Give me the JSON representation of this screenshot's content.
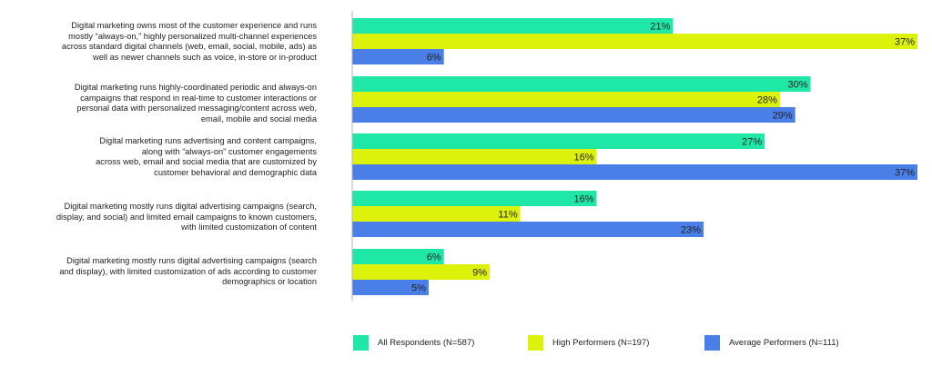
{
  "chart_data": {
    "type": "bar",
    "orientation": "horizontal",
    "categories": [
      "Digital marketing owns most of the customer experience and runs mostly “always-on,” highly personalized multi-channel experiences across standard digital channels (web, email, social, mobile, ads) as well as newer channels such as voice, in-store or in-product",
      "Digital marketing runs highly-coordinated periodic and always-on campaigns that respond in real-time to customer interactions or personal data with personalized messaging/content across web, email, mobile and social media",
      "Digital marketing runs advertising and content campaigns, along with “always-on” customer engagements across web, email and social media that are customized by customer behavioral and demographic data",
      "Digital marketing mostly runs digital advertising campaigns (search, display, and social) and limited email campaigns to known customers, with limited customization of content",
      "Digital marketing mostly runs digital advertising campaigns (search and display), with limited customization of ads according to customer demographics or location"
    ],
    "category_lines": [
      [
        "Digital marketing owns most of the customer experience and runs",
        "mostly “always-on,” highly personalized multi-channel experiences",
        "across standard digital channels (web, email, social, mobile, ads) as",
        "well as newer channels such as voice, in-store or in-product"
      ],
      [
        "Digital marketing runs highly-coordinated periodic and always-on",
        "campaigns that respond in real-time to customer interactions or",
        "personal data with personalized messaging/content across web,",
        "email, mobile and social media"
      ],
      [
        "Digital marketing runs advertising and content campaigns,",
        "along with “always-on” customer engagements",
        "across web, email and social media that are customized by",
        "customer behavioral and demographic data"
      ],
      [
        "Digital marketing mostly runs digital advertising campaigns (search,",
        "display, and social) and limited email campaigns to known customers,",
        "with limited customization of content"
      ],
      [
        "Digital marketing mostly runs digital advertising campaigns (search",
        "and display), with limited customization of ads according to customer",
        "demographics or location"
      ]
    ],
    "series": [
      {
        "name": "All Respondents (N=587)",
        "color": "#1fe8a6",
        "values": [
          21,
          30,
          27,
          16,
          6
        ]
      },
      {
        "name": "High Performers (N=197)",
        "color": "#ddf20a",
        "values": [
          37,
          28,
          16,
          11,
          9
        ]
      },
      {
        "name": "Average Performers (N=111)",
        "color": "#4a7fe8",
        "values": [
          6,
          29,
          37,
          23,
          5
        ]
      }
    ],
    "value_suffix": "%",
    "xlim": [
      0,
      37
    ],
    "grid": false,
    "legend_position": "bottom"
  }
}
